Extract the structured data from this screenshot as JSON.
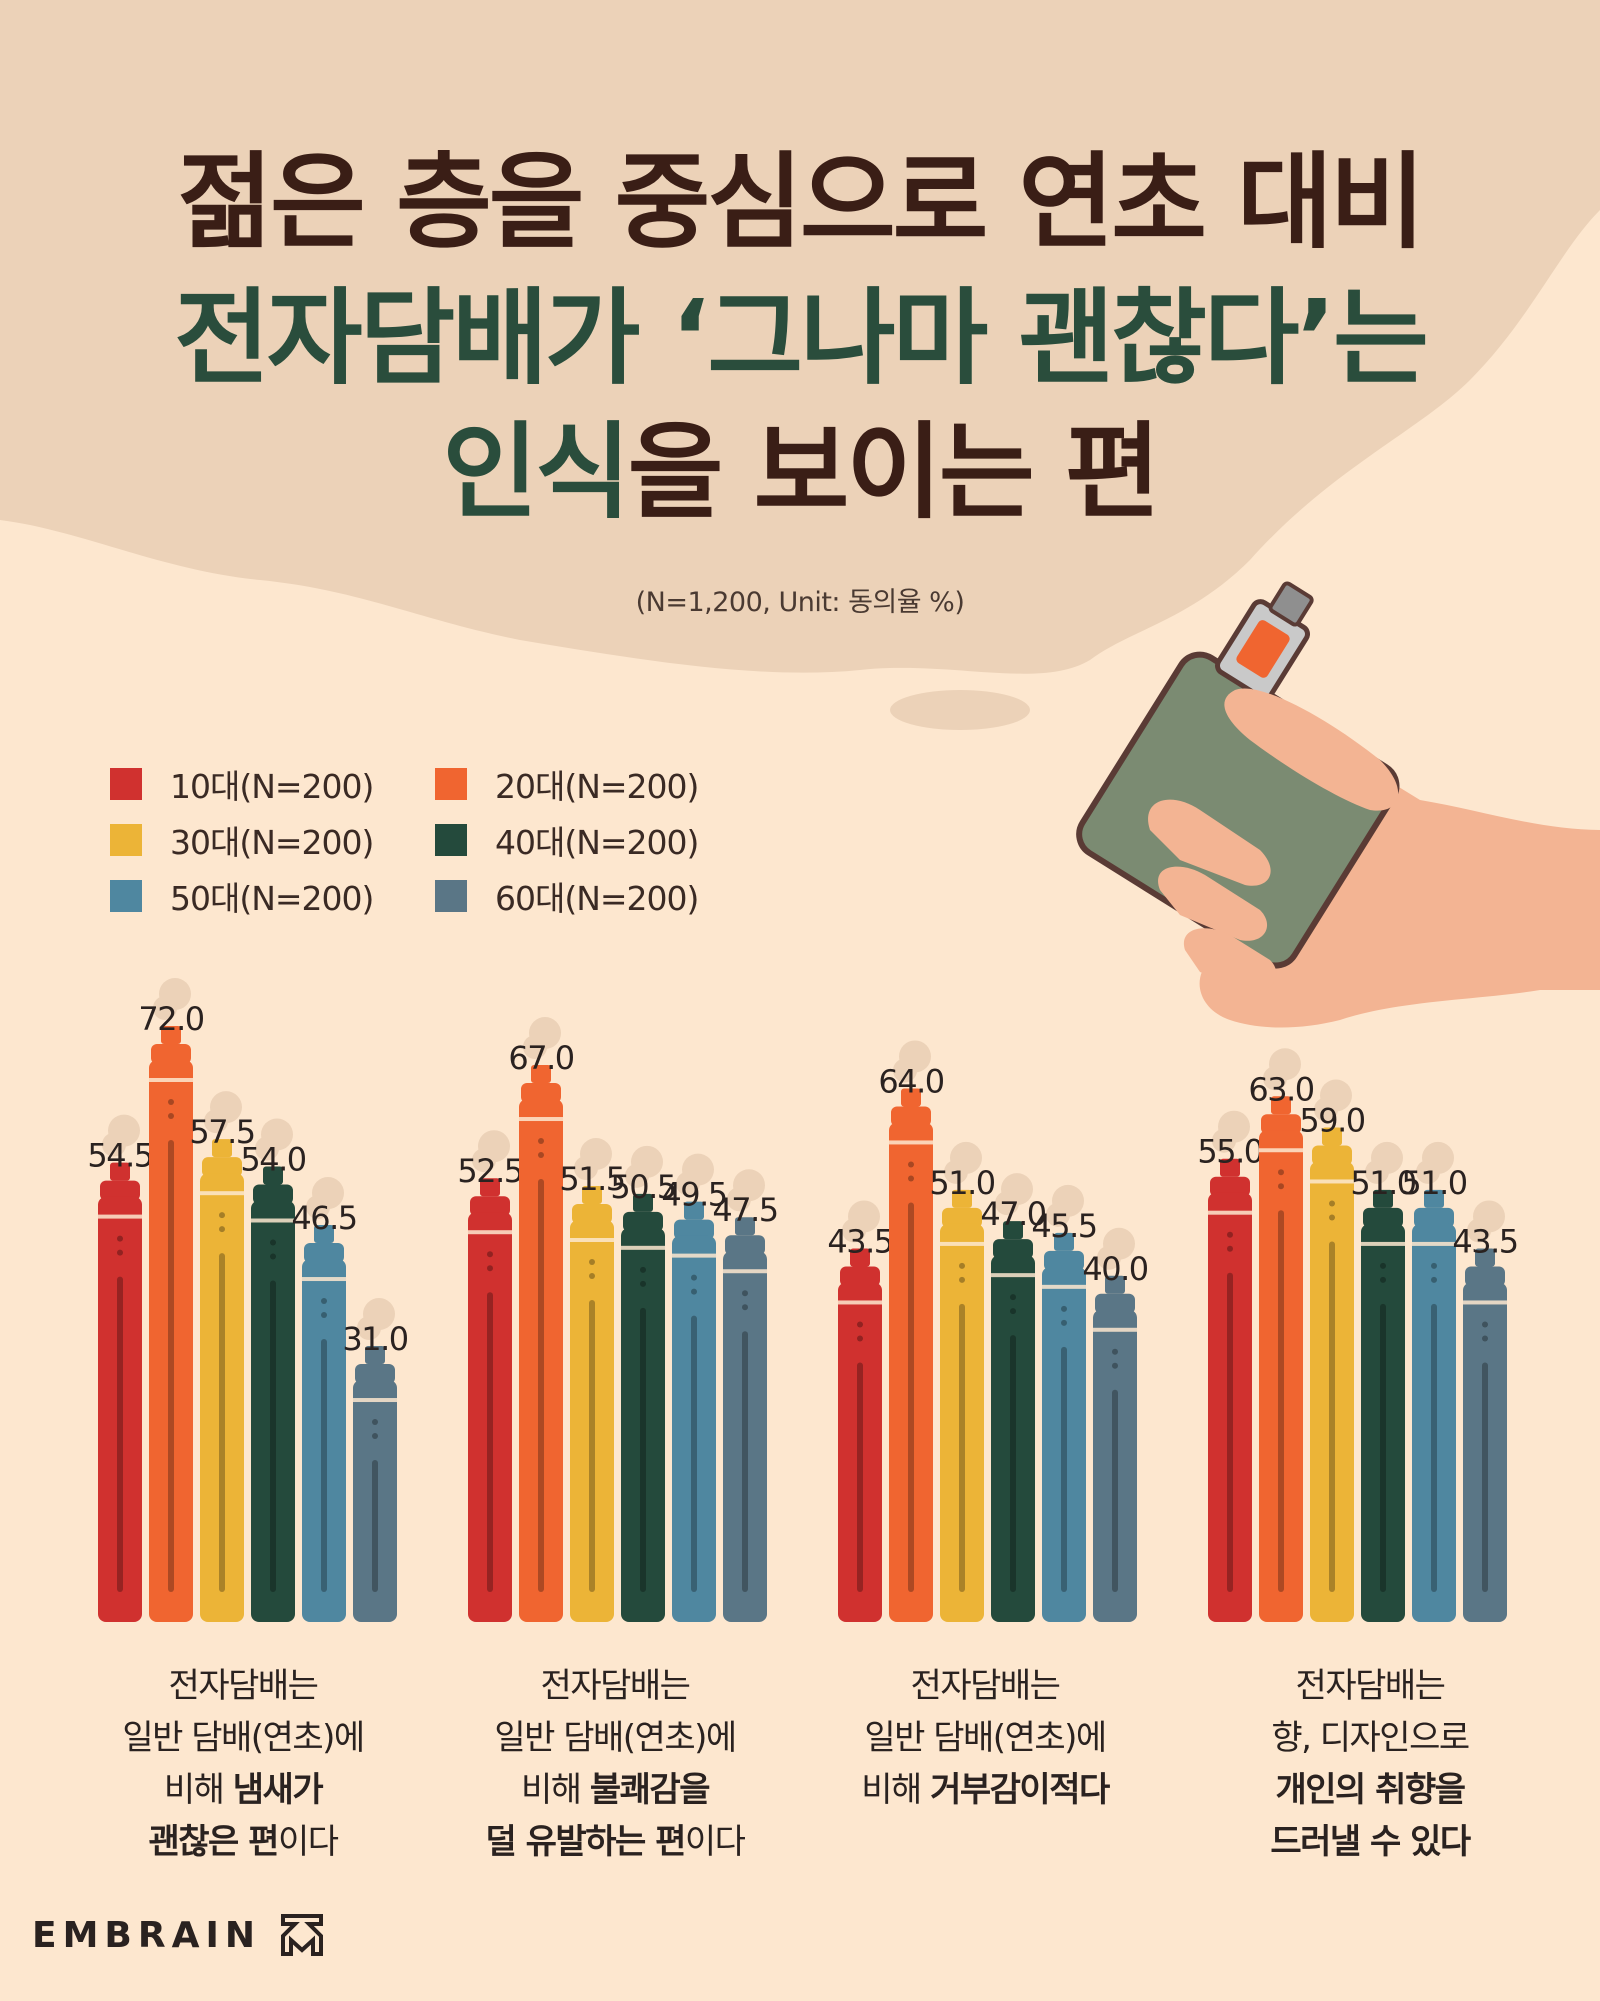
{
  "title": {
    "line1": "젊은 층을 중심으로 연초 대비",
    "line2": "전자담배가 ‘그나마 괜찮다’는",
    "line3_a": "인식",
    "line3_b": "을 보이는 편"
  },
  "subtitle": "(N=1,200, Unit: 동의율 %)",
  "brand": "EMBRAIN",
  "legend": [
    {
      "label": "10대(N=200)",
      "color": "#d0312f"
    },
    {
      "label": "20대(N=200)",
      "color": "#f06530"
    },
    {
      "label": "30대(N=200)",
      "color": "#ecb437"
    },
    {
      "label": "40대(N=200)",
      "color": "#244a3c"
    },
    {
      "label": "50대(N=200)",
      "color": "#4f87a0"
    },
    {
      "label": "60대(N=200)",
      "color": "#5a7686"
    }
  ],
  "captions": [
    {
      "lines": [
        [
          {
            "t": "전자담배는",
            "b": false
          }
        ],
        [
          {
            "t": "일반 담배(연초)에",
            "b": false
          }
        ],
        [
          {
            "t": "비해 ",
            "b": false
          },
          {
            "t": "냄새가",
            "b": true
          }
        ],
        [
          {
            "t": "괜찮은 편",
            "b": true
          },
          {
            "t": "이다",
            "b": false
          }
        ]
      ]
    },
    {
      "lines": [
        [
          {
            "t": "전자담배는",
            "b": false
          }
        ],
        [
          {
            "t": "일반 담배(연초)에",
            "b": false
          }
        ],
        [
          {
            "t": "비해 ",
            "b": false
          },
          {
            "t": "불쾌감을",
            "b": true
          }
        ],
        [
          {
            "t": "덜 유발하는 편",
            "b": true
          },
          {
            "t": "이다",
            "b": false
          }
        ]
      ]
    },
    {
      "lines": [
        [
          {
            "t": "전자담배는",
            "b": false
          }
        ],
        [
          {
            "t": "일반 담배(연초)에",
            "b": false
          }
        ],
        [
          {
            "t": "비해 ",
            "b": false
          },
          {
            "t": "거부감이적다",
            "b": true
          }
        ]
      ]
    },
    {
      "lines": [
        [
          {
            "t": "전자담배는",
            "b": false
          }
        ],
        [
          {
            "t": "향, 디자인으로",
            "b": false
          }
        ],
        [
          {
            "t": "개인의 취향을",
            "b": true
          }
        ],
        [
          {
            "t": "드러낼 수 있다",
            "b": true
          }
        ]
      ]
    }
  ],
  "chart_data": {
    "type": "bar",
    "categories": [
      "전자담배는 일반 담배(연초)에 비해 냄새가 괜찮은 편이다",
      "전자담배는 일반 담배(연초)에 비해 불쾌감을 덜 유발하는 편이다",
      "전자담배는 일반 담배(연초)에 비해 거부감이적다",
      "전자담배는 향, 디자인으로 개인의 취향을 드러낼 수 있다"
    ],
    "series": [
      {
        "name": "10대(N=200)",
        "values": [
          54.5,
          52.5,
          43.5,
          55.0
        ]
      },
      {
        "name": "20대(N=200)",
        "values": [
          72.0,
          67.0,
          64.0,
          63.0
        ]
      },
      {
        "name": "30대(N=200)",
        "values": [
          57.5,
          51.5,
          51.0,
          59.0
        ]
      },
      {
        "name": "40대(N=200)",
        "values": [
          54.0,
          50.5,
          47.0,
          51.0
        ]
      },
      {
        "name": "50대(N=200)",
        "values": [
          46.5,
          49.5,
          45.5,
          51.0
        ]
      },
      {
        "name": "60대(N=200)",
        "values": [
          31.0,
          47.5,
          40.0,
          43.5
        ]
      }
    ],
    "value_labels": [
      [
        "54.5",
        "72.0",
        "57.5",
        "54.0",
        "46.5",
        "31.0"
      ],
      [
        "52.5",
        "67.0",
        "51.5",
        "50.5",
        "49.5",
        "47.5"
      ],
      [
        "43.5",
        "64.0",
        "51.0",
        "47.0",
        "45.5",
        "40.0"
      ],
      [
        "55.0",
        "63.0",
        "59.0",
        "51.0",
        "51.0",
        "43.5"
      ]
    ],
    "unit": "%",
    "legend_position": "top-left",
    "grid": false
  }
}
